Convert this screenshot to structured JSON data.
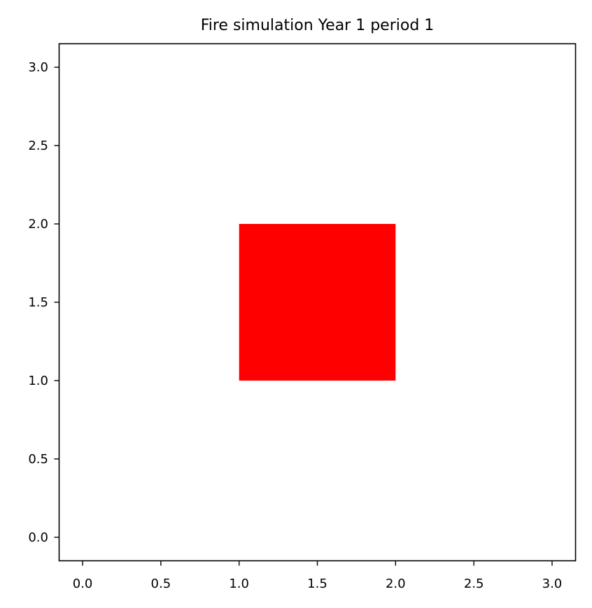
{
  "chart_data": {
    "type": "heatmap",
    "title": "Fire simulation Year 1 period 1",
    "xlabel": "",
    "ylabel": "",
    "xlim": [
      -0.15,
      3.15
    ],
    "ylim": [
      -0.15,
      3.15
    ],
    "xticks": [
      0.0,
      0.5,
      1.0,
      1.5,
      2.0,
      2.5,
      3.0
    ],
    "yticks": [
      0.0,
      0.5,
      1.0,
      1.5,
      2.0,
      2.5,
      3.0
    ],
    "xtick_labels": [
      "0.0",
      "0.5",
      "1.0",
      "1.5",
      "2.0",
      "2.5",
      "3.0"
    ],
    "ytick_labels": [
      "0.0",
      "0.5",
      "1.0",
      "1.5",
      "2.0",
      "2.5",
      "3.0"
    ],
    "grid": false,
    "cells": [
      {
        "x0": 1.0,
        "x1": 2.0,
        "y0": 1.0,
        "y1": 2.0,
        "color": "#ff0000"
      }
    ]
  },
  "colors": {
    "background": "#ffffff",
    "axis": "#000000",
    "fire": "#ff0000"
  }
}
